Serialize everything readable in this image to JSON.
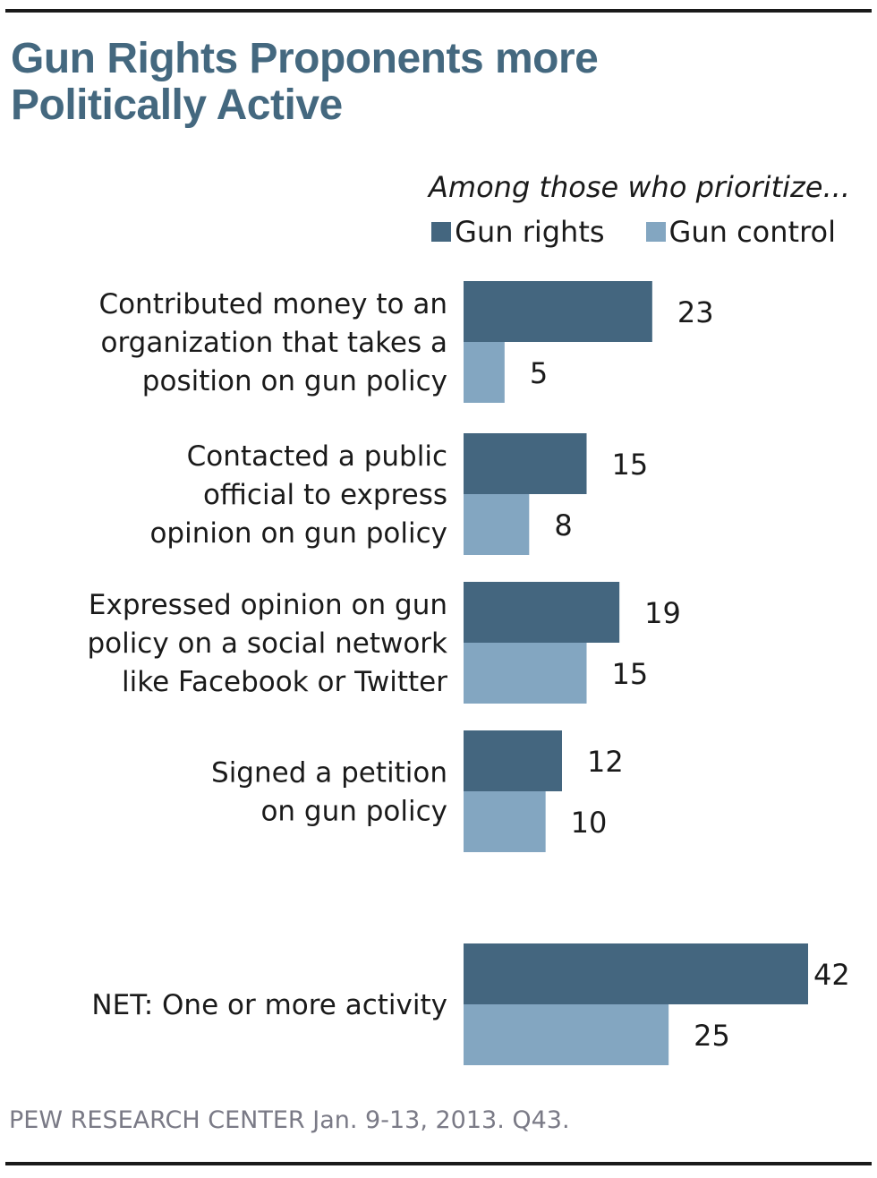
{
  "header": {
    "title_line1": "Gun Rights Proponents more",
    "title_line2": "Politically Active"
  },
  "colors": {
    "gun_rights": "#44667f",
    "gun_control": "#83a6c1",
    "title": "#44687f"
  },
  "chart_data": {
    "type": "bar",
    "orientation": "horizontal",
    "title": "Gun Rights Proponents more Politically Active",
    "subtitle": "Among those who prioritize...",
    "categories": [
      [
        "Contributed money to an",
        "organization that takes a",
        "position on gun policy"
      ],
      [
        "Contacted a public",
        "official to express",
        "opinion on gun policy"
      ],
      [
        "Expressed opinion on gun",
        "policy on a social network",
        "like Facebook or Twitter"
      ],
      [
        "Signed a petition",
        "on gun policy"
      ],
      [
        "NET: One or more activity"
      ]
    ],
    "series": [
      {
        "name": "Gun rights",
        "values": [
          23,
          15,
          19,
          12,
          42
        ]
      },
      {
        "name": "Gun control",
        "values": [
          5,
          8,
          15,
          10,
          25
        ]
      }
    ],
    "xlim": [
      0,
      42
    ],
    "grid": false,
    "legend_position": "top-right",
    "xlabel": "",
    "ylabel": ""
  },
  "footer": {
    "source": "PEW RESEARCH  CENTER Jan. 9-13, 2013. Q43."
  }
}
